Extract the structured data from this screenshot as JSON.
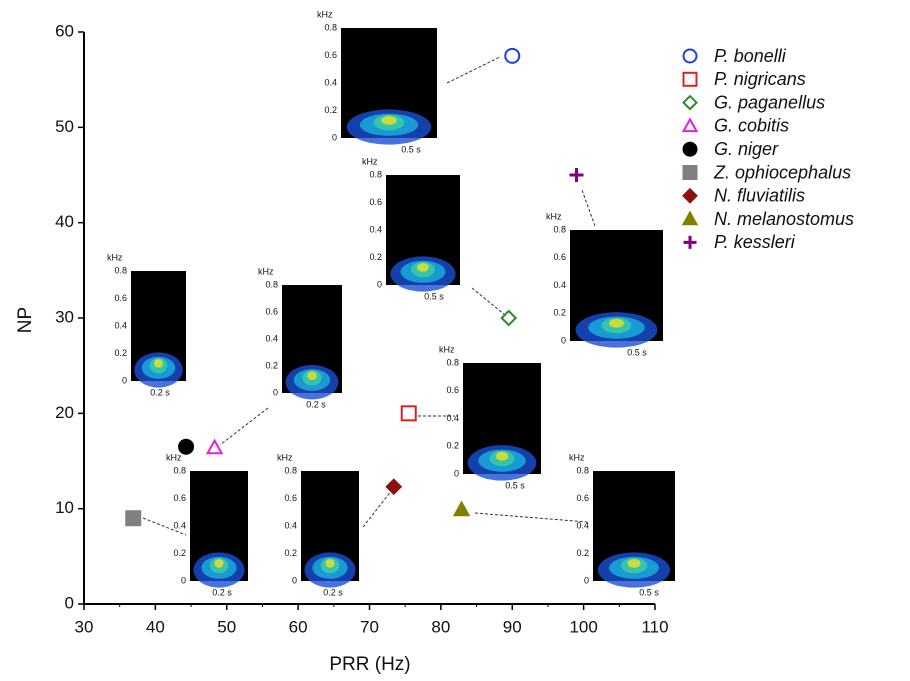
{
  "chart_data": {
    "type": "scatter",
    "xlabel": "PRR (Hz)",
    "ylabel": "NP",
    "xlim": [
      30,
      110
    ],
    "xticks": [
      30,
      40,
      50,
      60,
      70,
      80,
      90,
      100,
      110
    ],
    "ylim": [
      0,
      60
    ],
    "yticks": [
      0,
      10,
      20,
      30,
      40,
      50,
      60
    ],
    "legend": "right",
    "series": [
      {
        "name": "P. bonelli",
        "color": "#1f3fe0",
        "marker": "circle",
        "filled": false,
        "x": [
          90
        ],
        "values": [
          57.5
        ]
      },
      {
        "name": "P. nigricans",
        "color": "#e02020",
        "marker": "square",
        "filled": false,
        "x": [
          75.5
        ],
        "values": [
          20
        ]
      },
      {
        "name": "G. paganellus",
        "color": "#2a8a2a",
        "marker": "diamond",
        "filled": false,
        "x": [
          89.5
        ],
        "values": [
          30
        ]
      },
      {
        "name": "G. cobitis",
        "color": "#e020e0",
        "marker": "triangle",
        "filled": false,
        "x": [
          48.3
        ],
        "values": [
          16.4
        ]
      },
      {
        "name": "G. niger",
        "color": "#000000",
        "marker": "circle",
        "filled": true,
        "x": [
          44.3
        ],
        "values": [
          16.5
        ]
      },
      {
        "name": "Z. ophiocephalus",
        "color": "#808080",
        "marker": "square",
        "filled": true,
        "x": [
          36.9
        ],
        "values": [
          9
        ]
      },
      {
        "name": "N. fluviatilis",
        "color": "#8b1010",
        "marker": "diamond",
        "filled": true,
        "x": [
          73.4
        ],
        "values": [
          12.3
        ]
      },
      {
        "name": "N. melanostomus",
        "color": "#808000",
        "marker": "triangle",
        "filled": true,
        "x": [
          82.9
        ],
        "values": [
          9.9
        ]
      },
      {
        "name": "P. kessleri",
        "color": "#800080",
        "marker": "plus",
        "filled": true,
        "x": [
          99
        ],
        "values": [
          45
        ]
      }
    ],
    "insets": [
      {
        "unit": "kHz",
        "ylim": [
          0,
          0.8
        ],
        "yticks": [
          0,
          0.2,
          0.4,
          0.6,
          0.8
        ],
        "duration": "0.5 s"
      },
      {
        "unit": "kHz",
        "ylim": [
          0,
          0.8
        ],
        "yticks": [
          0,
          0.2,
          0.4,
          0.6,
          0.8
        ],
        "duration": "0.5 s"
      },
      {
        "unit": "kHz",
        "ylim": [
          0,
          0.8
        ],
        "yticks": [
          0,
          0.2,
          0.4,
          0.6,
          0.8
        ],
        "duration": "0.5 s"
      },
      {
        "unit": "kHz",
        "ylim": [
          0,
          0.8
        ],
        "yticks": [
          0,
          0.2,
          0.4,
          0.6,
          0.8
        ],
        "duration": "0.2 s"
      },
      {
        "unit": "kHz",
        "ylim": [
          0,
          0.8
        ],
        "yticks": [
          0,
          0.2,
          0.4,
          0.6,
          0.8
        ],
        "duration": "0.2 s"
      },
      {
        "unit": "kHz",
        "ylim": [
          0,
          0.8
        ],
        "yticks": [
          0,
          0.2,
          0.4,
          0.6,
          0.8
        ],
        "duration": "0.5 s"
      },
      {
        "unit": "kHz",
        "ylim": [
          0,
          0.8
        ],
        "yticks": [
          0,
          0.2,
          0.4,
          0.6,
          0.8
        ],
        "duration": "0.2 s"
      },
      {
        "unit": "kHz",
        "ylim": [
          0,
          0.8
        ],
        "yticks": [
          0,
          0.2,
          0.4,
          0.6,
          0.8
        ],
        "duration": "0.2 s"
      },
      {
        "unit": "kHz",
        "ylim": [
          0,
          0.8
        ],
        "yticks": [
          0,
          0.2,
          0.4,
          0.6,
          0.8
        ],
        "duration": "0.5 s"
      }
    ]
  }
}
